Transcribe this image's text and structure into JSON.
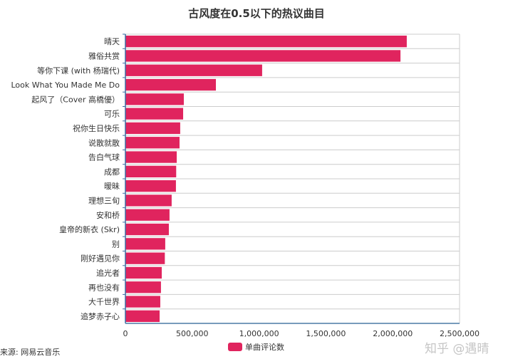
{
  "chart_data": {
    "type": "bar",
    "orientation": "horizontal",
    "title": "古风度在0.5以下的热议曲目",
    "categories": [
      "晴天",
      "雅俗共赏",
      "等你下课 (with 杨瑞代)",
      "Look What You Made Me Do",
      "起风了（Cover 高橋優）",
      "可乐",
      "祝你生日快乐",
      "说散就散",
      "告白气球",
      "成都",
      "暧昧",
      "理想三旬",
      "安和桥",
      "皇帝的新衣 (Skr)",
      "别",
      "刚好遇见你",
      "追光者",
      "再也没有",
      "大千世界",
      "追梦赤子心"
    ],
    "series": [
      {
        "name": "单曲评论数",
        "color": "#e0245e",
        "values": [
          2105000,
          2058000,
          1023000,
          677000,
          437000,
          432000,
          410000,
          405000,
          384000,
          380000,
          378000,
          346000,
          330000,
          325000,
          298000,
          295000,
          272000,
          266000,
          261000,
          256000
        ]
      }
    ],
    "xlim": [
      0,
      2500000
    ],
    "xticks": [
      "0",
      "500,000",
      "1,000,000",
      "1,500,000",
      "2,000,000",
      "2,500,000"
    ],
    "grid": true,
    "legend": "bottom"
  },
  "source": "来源: 网易云音乐",
  "watermark": "知乎 @遇晴"
}
